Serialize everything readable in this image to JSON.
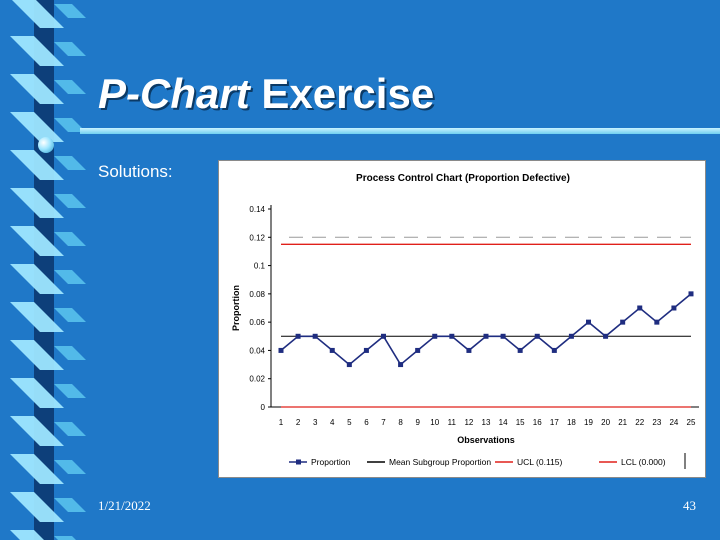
{
  "slide": {
    "title_italic": "P-Chart",
    "title_rest": "Exercise",
    "subtitle": "Solutions:",
    "date": "1/21/2022",
    "page_number": "43",
    "colors": {
      "background": "#1f78c8",
      "accent_light": "#9ee6ff",
      "accent_dark": "#0d3f7a",
      "series": "#1f2d80",
      "mean": "#000000",
      "ucl": "#e0201a",
      "lcl": "#e0201a"
    },
    "decor_icons": [
      "bullet-dot-icon"
    ]
  },
  "chart_data": {
    "type": "line",
    "title": "Process Control Chart (Proportion Defective)",
    "xlabel": "Observations",
    "ylabel": "Proportion",
    "x": [
      1,
      2,
      3,
      4,
      5,
      6,
      7,
      8,
      9,
      10,
      11,
      12,
      13,
      14,
      15,
      16,
      17,
      18,
      19,
      20,
      21,
      22,
      23,
      24,
      25
    ],
    "ylim": [
      0,
      0.14
    ],
    "yticks": [
      "0",
      "0.02",
      "0.04",
      "0.06",
      "0.08",
      "0.1",
      "0.12",
      "0.14"
    ],
    "grid": false,
    "legend_position": "bottom",
    "series": [
      {
        "name": "Proportion",
        "values": [
          0.04,
          0.05,
          0.05,
          0.04,
          0.03,
          0.04,
          0.05,
          0.03,
          0.04,
          0.05,
          0.05,
          0.04,
          0.05,
          0.05,
          0.04,
          0.05,
          0.04,
          0.05,
          0.06,
          0.05,
          0.06,
          0.07,
          0.06,
          0.07,
          0.08
        ]
      },
      {
        "name": "Mean Subgroup Proportion",
        "value": 0.05
      },
      {
        "name": "UCL (0.115)",
        "value": 0.115
      },
      {
        "name": "LCL (0.000)",
        "value": 0.0
      }
    ]
  }
}
